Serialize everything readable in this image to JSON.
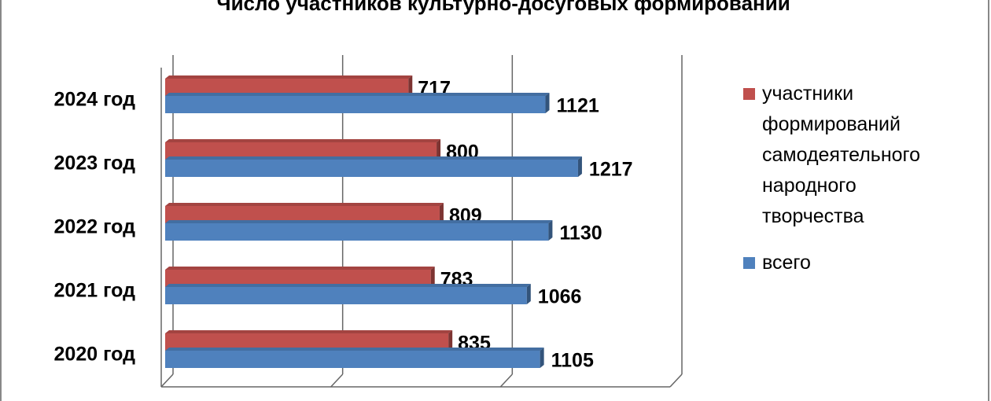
{
  "chart_data": {
    "type": "bar",
    "orientation": "horizontal",
    "title": "Число участников культурно-досуговых формирований",
    "categories": [
      "2024 год",
      "2023 год",
      "2022 год",
      "2021 год",
      "2020 год"
    ],
    "series": [
      {
        "name": "участники формирований самодеятельного народного творчества",
        "color": "#c0504d",
        "values": [
          717,
          800,
          809,
          783,
          835
        ]
      },
      {
        "name": "всего",
        "color": "#4f81bd",
        "values": [
          1121,
          1217,
          1130,
          1066,
          1105
        ]
      }
    ],
    "xlim": [
      0,
      1500
    ],
    "xticks": [
      0,
      500,
      1000,
      1500
    ],
    "grid": true,
    "legend": "right"
  }
}
